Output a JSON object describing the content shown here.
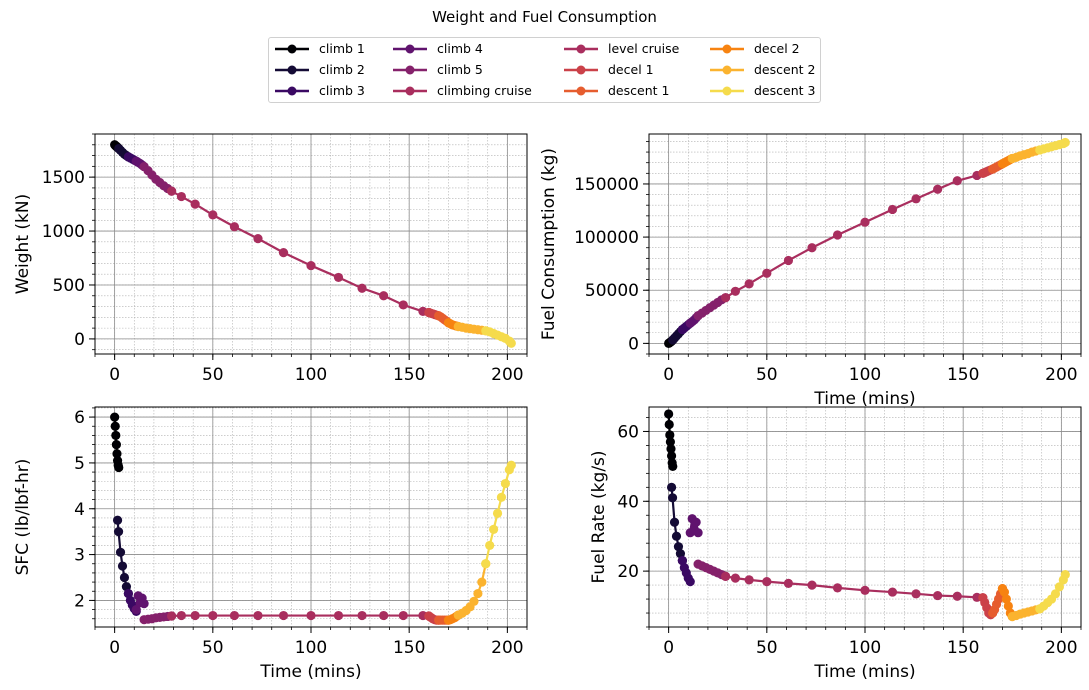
{
  "figure_title": "Weight and Fuel Consumption",
  "legend": [
    {
      "name": "climb 1",
      "color": "#000004"
    },
    {
      "name": "climb 2",
      "color": "#140b35"
    },
    {
      "name": "climb 3",
      "color": "#3a0963"
    },
    {
      "name": "climb 4",
      "color": "#60136e"
    },
    {
      "name": "climb 5",
      "color": "#85216b"
    },
    {
      "name": "climbing cruise",
      "color": "#a92e5e"
    },
    {
      "name": "level cruise",
      "color": "#a92e5e"
    },
    {
      "name": "decel 1",
      "color": "#cb4149"
    },
    {
      "name": "descent 1",
      "color": "#e65d2f"
    },
    {
      "name": "decel 2",
      "color": "#f78311"
    },
    {
      "name": "descent 2",
      "color": "#fbb32f"
    },
    {
      "name": "descent 3",
      "color": "#f5db4c"
    }
  ],
  "chart_data": [
    {
      "type": "line",
      "id": "weight",
      "title": "",
      "xlabel": "",
      "ylabel": "Weight (kN)",
      "xlim": [
        -10,
        210
      ],
      "ylim": [
        -140,
        1900
      ],
      "xticks": [
        0,
        50,
        100,
        150,
        200
      ],
      "yticks": [
        0,
        500,
        1000,
        1500
      ],
      "series": [
        {
          "name": "climb 1",
          "x": [
            0,
            0.3,
            0.6,
            0.9,
            1.2,
            1.5,
            1.8,
            2.1
          ],
          "y": [
            1800,
            1795,
            1790,
            1785,
            1780,
            1775,
            1770,
            1765
          ]
        },
        {
          "name": "climb 2",
          "x": [
            2.1,
            3,
            4,
            5,
            6,
            7
          ],
          "y": [
            1765,
            1748,
            1730,
            1712,
            1700,
            1688
          ]
        },
        {
          "name": "climb 3",
          "x": [
            7,
            8,
            9,
            10,
            11
          ],
          "y": [
            1688,
            1678,
            1668,
            1658,
            1648
          ]
        },
        {
          "name": "climb 4",
          "x": [
            11,
            12,
            13,
            14,
            15
          ],
          "y": [
            1648,
            1637,
            1626,
            1612,
            1598
          ]
        },
        {
          "name": "climb 5",
          "x": [
            15,
            17,
            19,
            21,
            23,
            25,
            27,
            29
          ],
          "y": [
            1598,
            1560,
            1520,
            1480,
            1450,
            1420,
            1395,
            1370
          ]
        },
        {
          "name": "climbing cruise",
          "x": [
            29,
            34,
            41,
            50,
            61,
            73,
            86,
            100,
            114,
            126,
            137,
            147,
            157,
            160
          ],
          "y": [
            1370,
            1320,
            1250,
            1150,
            1040,
            930,
            800,
            680,
            570,
            470,
            400,
            315,
            255,
            245
          ]
        },
        {
          "name": "decel 1",
          "x": [
            160,
            161,
            162,
            163,
            164,
            165
          ],
          "y": [
            245,
            238,
            232,
            226,
            220,
            215
          ]
        },
        {
          "name": "descent 1",
          "x": [
            165,
            166,
            167,
            168,
            169,
            170
          ],
          "y": [
            215,
            205,
            192,
            178,
            165,
            150
          ]
        },
        {
          "name": "decel 2",
          "x": [
            170,
            171,
            172,
            173,
            174,
            175
          ],
          "y": [
            150,
            140,
            130,
            125,
            120,
            115
          ]
        },
        {
          "name": "descent 2",
          "x": [
            175,
            177,
            179,
            181,
            183,
            185,
            187,
            189
          ],
          "y": [
            115,
            108,
            100,
            95,
            90,
            85,
            80,
            75
          ]
        },
        {
          "name": "descent 3",
          "x": [
            189,
            191,
            193,
            195,
            197,
            199,
            201,
            202
          ],
          "y": [
            75,
            65,
            50,
            35,
            20,
            5,
            -20,
            -40
          ]
        }
      ]
    },
    {
      "type": "line",
      "id": "fuel",
      "title": "",
      "xlabel": "Time (mins)",
      "ylabel": "Fuel Consumption (kg)",
      "xlim": [
        -10,
        210
      ],
      "ylim": [
        -10000,
        197000
      ],
      "xticks": [
        0,
        50,
        100,
        150,
        200
      ],
      "yticks": [
        0,
        50000,
        100000,
        150000
      ],
      "series": [
        {
          "name": "climb 1",
          "x": [
            0,
            0.3,
            0.6,
            0.9,
            1.2,
            1.5,
            1.8,
            2.1
          ],
          "y": [
            0,
            400,
            800,
            1200,
            1600,
            2000,
            2600,
            3200
          ]
        },
        {
          "name": "climb 2",
          "x": [
            2.1,
            3,
            4,
            5,
            6,
            7
          ],
          "y": [
            3200,
            5000,
            7000,
            9000,
            11000,
            13000
          ]
        },
        {
          "name": "climb 3",
          "x": [
            7,
            8,
            9,
            10,
            11
          ],
          "y": [
            13000,
            14500,
            16000,
            17500,
            19000
          ]
        },
        {
          "name": "climb 4",
          "x": [
            11,
            12,
            13,
            14,
            15
          ],
          "y": [
            19000,
            20500,
            22000,
            24000,
            26000
          ]
        },
        {
          "name": "climb 5",
          "x": [
            15,
            17,
            19,
            21,
            23,
            25,
            27,
            29
          ],
          "y": [
            26000,
            28500,
            31000,
            33500,
            36000,
            38500,
            41000,
            43000
          ]
        },
        {
          "name": "climbing cruise",
          "x": [
            29,
            34,
            41,
            50,
            61,
            73,
            86,
            100,
            114,
            126,
            137,
            147,
            157,
            160
          ],
          "y": [
            43000,
            49000,
            56000,
            66000,
            78000,
            90000,
            102000,
            114000,
            126000,
            136000,
            145000,
            153000,
            158000,
            160000
          ]
        },
        {
          "name": "decel 1",
          "x": [
            160,
            161,
            162,
            163,
            164,
            165
          ],
          "y": [
            160000,
            160800,
            161600,
            162400,
            163200,
            164000
          ]
        },
        {
          "name": "descent 1",
          "x": [
            165,
            166,
            167,
            168,
            169,
            170
          ],
          "y": [
            164000,
            165000,
            166000,
            167000,
            168000,
            169000
          ]
        },
        {
          "name": "decel 2",
          "x": [
            170,
            171,
            172,
            173,
            174,
            175
          ],
          "y": [
            169000,
            170000,
            171000,
            172000,
            173000,
            174000
          ]
        },
        {
          "name": "descent 2",
          "x": [
            175,
            177,
            179,
            181,
            183,
            185,
            187,
            189
          ],
          "y": [
            174000,
            175000,
            176500,
            177500,
            178500,
            180000,
            181000,
            182000
          ]
        },
        {
          "name": "descent 3",
          "x": [
            189,
            191,
            193,
            195,
            197,
            199,
            201,
            202
          ],
          "y": [
            182000,
            183000,
            184000,
            185000,
            186000,
            187000,
            188000,
            189000
          ]
        }
      ]
    },
    {
      "type": "line",
      "id": "sfc",
      "title": "",
      "xlabel": "Time (mins)",
      "ylabel": "SFC (lb/lbf-hr)",
      "xlim": [
        -10,
        210
      ],
      "ylim": [
        1.42,
        6.22
      ],
      "xticks": [
        0,
        50,
        100,
        150,
        200
      ],
      "yticks": [
        2,
        3,
        4,
        5,
        6
      ],
      "series": [
        {
          "name": "climb 1",
          "x": [
            0,
            0.3,
            0.6,
            0.9,
            1.2,
            1.5,
            1.8,
            2.1
          ],
          "y": [
            6.0,
            5.8,
            5.6,
            5.4,
            5.2,
            5.05,
            4.95,
            4.9
          ]
        },
        {
          "name": "climb 2",
          "x": [
            1.5,
            2,
            3,
            4,
            5,
            6,
            7
          ],
          "y": [
            3.75,
            3.5,
            3.05,
            2.75,
            2.5,
            2.3,
            2.15
          ]
        },
        {
          "name": "climb 3",
          "x": [
            7,
            8,
            9,
            10,
            11
          ],
          "y": [
            2.15,
            2.0,
            1.9,
            1.82,
            1.76
          ]
        },
        {
          "name": "climb 4",
          "x": [
            11,
            12,
            13,
            14,
            15
          ],
          "y": [
            1.8,
            2.1,
            1.95,
            2.05,
            1.93
          ]
        },
        {
          "name": "climb 5",
          "x": [
            15,
            17,
            19,
            21,
            23,
            25,
            27,
            29
          ],
          "y": [
            1.58,
            1.59,
            1.6,
            1.62,
            1.63,
            1.64,
            1.65,
            1.66
          ]
        },
        {
          "name": "climbing cruise",
          "x": [
            29,
            34,
            41,
            50,
            61,
            73,
            86,
            100,
            114,
            126,
            137,
            147,
            157,
            160
          ],
          "y": [
            1.66,
            1.67,
            1.67,
            1.67,
            1.67,
            1.67,
            1.67,
            1.67,
            1.67,
            1.67,
            1.67,
            1.67,
            1.67,
            1.66
          ]
        },
        {
          "name": "decel 1",
          "x": [
            160,
            161,
            162,
            163,
            164,
            165
          ],
          "y": [
            1.66,
            1.63,
            1.6,
            1.58,
            1.57,
            1.57
          ]
        },
        {
          "name": "descent 1",
          "x": [
            165,
            166,
            167,
            168,
            169,
            170
          ],
          "y": [
            1.57,
            1.57,
            1.57,
            1.57,
            1.57,
            1.57
          ]
        },
        {
          "name": "decel 2",
          "x": [
            170,
            171,
            172,
            173,
            174,
            175
          ],
          "y": [
            1.57,
            1.58,
            1.6,
            1.62,
            1.65,
            1.68
          ]
        },
        {
          "name": "descent 2",
          "x": [
            175,
            177,
            179,
            181,
            183,
            185,
            187,
            189
          ],
          "y": [
            1.68,
            1.72,
            1.78,
            1.86,
            1.98,
            2.15,
            2.4,
            2.8
          ]
        },
        {
          "name": "descent 3",
          "x": [
            189,
            191,
            193,
            195,
            197,
            199,
            201,
            202
          ],
          "y": [
            2.8,
            3.2,
            3.55,
            3.9,
            4.25,
            4.55,
            4.85,
            4.95
          ]
        }
      ]
    },
    {
      "type": "line",
      "id": "fuel-rate",
      "title": "",
      "xlabel": "Time (mins)",
      "ylabel": "Fuel Rate (kg/s)",
      "xlim": [
        -10,
        210
      ],
      "ylim": [
        4,
        67
      ],
      "xticks": [
        0,
        50,
        100,
        150,
        200
      ],
      "yticks": [
        20,
        40,
        60
      ],
      "series": [
        {
          "name": "climb 1",
          "x": [
            0,
            0.3,
            0.6,
            0.9,
            1.2,
            1.5,
            1.8,
            2.1
          ],
          "y": [
            65,
            62,
            59,
            57,
            55,
            53,
            51,
            50
          ]
        },
        {
          "name": "climb 2",
          "x": [
            1.5,
            2,
            3,
            4,
            5,
            6,
            7
          ],
          "y": [
            44,
            41,
            34,
            30,
            27,
            25,
            23
          ]
        },
        {
          "name": "climb 3",
          "x": [
            7,
            8,
            9,
            10,
            11
          ],
          "y": [
            23,
            21,
            19.5,
            18,
            17
          ]
        },
        {
          "name": "climb 4",
          "x": [
            11,
            12,
            13,
            14,
            15
          ],
          "y": [
            31,
            35,
            32,
            34,
            31
          ]
        },
        {
          "name": "climb 5",
          "x": [
            15,
            17,
            19,
            21,
            23,
            25,
            27,
            29
          ],
          "y": [
            22,
            21.5,
            21,
            20.5,
            20,
            19.5,
            19,
            18.5
          ]
        },
        {
          "name": "climbing cruise",
          "x": [
            29,
            34,
            41,
            50,
            61,
            73,
            86,
            100,
            114,
            126,
            137,
            147,
            157,
            160
          ],
          "y": [
            18.5,
            18,
            17.5,
            17,
            16.5,
            16,
            15.2,
            14.5,
            14,
            13.5,
            13,
            12.8,
            12.5,
            12.4
          ]
        },
        {
          "name": "decel 1",
          "x": [
            160,
            161,
            162,
            163,
            164,
            165
          ],
          "y": [
            12.4,
            11,
            9.5,
            8,
            7.5,
            8
          ]
        },
        {
          "name": "descent 1",
          "x": [
            165,
            166,
            167,
            168,
            169,
            170
          ],
          "y": [
            8,
            9,
            10.5,
            12,
            13.5,
            15
          ]
        },
        {
          "name": "decel 2",
          "x": [
            170,
            171,
            172,
            173,
            174,
            175
          ],
          "y": [
            15,
            14,
            12,
            10,
            8,
            7
          ]
        },
        {
          "name": "descent 2",
          "x": [
            175,
            177,
            179,
            181,
            183,
            185,
            187,
            189
          ],
          "y": [
            7,
            7.3,
            7.7,
            8,
            8.3,
            8.6,
            8.9,
            9.2
          ]
        },
        {
          "name": "descent 3",
          "x": [
            189,
            191,
            193,
            195,
            197,
            199,
            201,
            202
          ],
          "y": [
            9.2,
            10,
            11,
            12,
            13.5,
            15.5,
            17.5,
            19
          ]
        }
      ]
    }
  ]
}
